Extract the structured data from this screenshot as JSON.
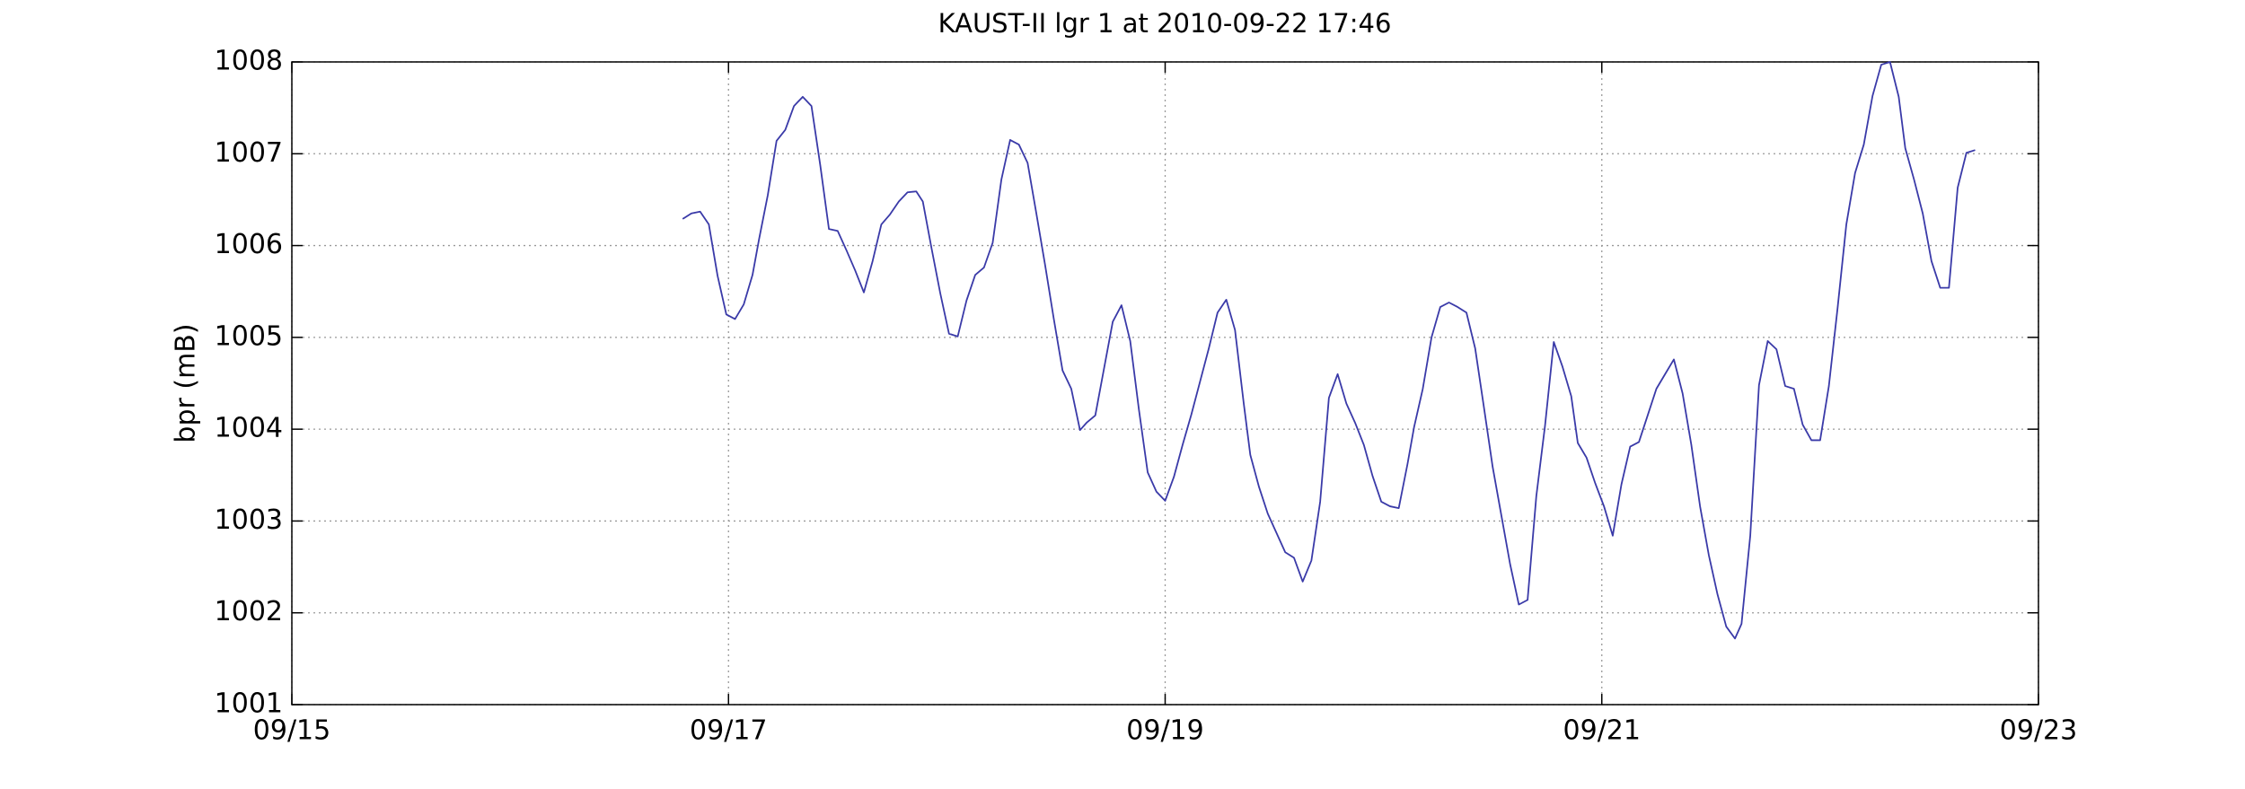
{
  "chart_data": {
    "type": "line",
    "title": "KAUST-II lgr 1 at 2010-09-22 17:46",
    "y_label": "bpr (mB)",
    "color": "#3a3aa8",
    "grid": true,
    "xlim": [
      15,
      23
    ],
    "xticks": [
      {
        "value": 15,
        "label": "09/15"
      },
      {
        "value": 17,
        "label": "09/17"
      },
      {
        "value": 19,
        "label": "09/19"
      },
      {
        "value": 21,
        "label": "09/21"
      },
      {
        "value": 23,
        "label": "09/23"
      }
    ],
    "ylim": [
      1001,
      1008
    ],
    "yticks": [
      1001,
      1002,
      1003,
      1004,
      1005,
      1006,
      1007,
      1008
    ],
    "x": [
      16.79,
      16.83,
      16.87,
      16.91,
      16.95,
      16.99,
      17.03,
      17.07,
      17.11,
      17.14,
      17.18,
      17.22,
      17.26,
      17.3,
      17.34,
      17.38,
      17.42,
      17.46,
      17.5,
      17.54,
      17.58,
      17.62,
      17.66,
      17.7,
      17.74,
      17.78,
      17.82,
      17.86,
      17.89,
      17.93,
      17.97,
      18.01,
      18.05,
      18.09,
      18.13,
      18.17,
      18.21,
      18.25,
      18.29,
      18.33,
      18.37,
      18.41,
      18.45,
      18.49,
      18.53,
      18.57,
      18.61,
      18.64,
      18.68,
      18.72,
      18.76,
      18.8,
      18.84,
      18.88,
      18.92,
      18.96,
      19.0,
      19.04,
      19.08,
      19.12,
      19.16,
      19.2,
      19.24,
      19.28,
      19.32,
      19.36,
      19.39,
      19.43,
      19.47,
      19.51,
      19.55,
      19.59,
      19.63,
      19.67,
      19.71,
      19.75,
      19.79,
      19.83,
      19.87,
      19.91,
      19.95,
      19.99,
      20.03,
      20.07,
      20.11,
      20.14,
      20.18,
      20.22,
      20.26,
      20.3,
      20.34,
      20.38,
      20.42,
      20.46,
      20.5,
      20.54,
      20.58,
      20.62,
      20.66,
      20.7,
      20.74,
      20.78,
      20.82,
      20.86,
      20.89,
      20.93,
      20.97,
      21.01,
      21.05,
      21.09,
      21.13,
      21.17,
      21.21,
      21.25,
      21.29,
      21.33,
      21.37,
      21.41,
      21.45,
      21.49,
      21.53,
      21.57,
      21.61,
      21.64,
      21.68,
      21.72,
      21.76,
      21.8,
      21.84,
      21.88,
      21.92,
      21.96,
      22.0,
      22.04,
      22.08,
      22.12,
      22.16,
      22.2,
      22.24,
      22.28,
      22.32,
      22.36,
      22.39,
      22.43,
      22.47,
      22.51,
      22.55,
      22.59,
      22.63,
      22.67,
      22.71
    ],
    "values": [
      1006.29,
      1006.35,
      1006.37,
      1006.23,
      1005.67,
      1005.25,
      1005.2,
      1005.36,
      1005.68,
      1006.07,
      1006.55,
      1007.14,
      1007.26,
      1007.52,
      1007.62,
      1007.52,
      1006.88,
      1006.18,
      1006.16,
      1005.95,
      1005.73,
      1005.49,
      1005.83,
      1006.23,
      1006.34,
      1006.48,
      1006.58,
      1006.59,
      1006.48,
      1005.97,
      1005.48,
      1005.04,
      1005.01,
      1005.4,
      1005.68,
      1005.76,
      1006.03,
      1006.72,
      1007.15,
      1007.1,
      1006.9,
      1006.35,
      1005.79,
      1005.2,
      1004.64,
      1004.44,
      1003.99,
      1004.07,
      1004.15,
      1004.66,
      1005.17,
      1005.35,
      1004.96,
      1004.21,
      1003.53,
      1003.32,
      1003.22,
      1003.48,
      1003.83,
      1004.16,
      1004.52,
      1004.88,
      1005.27,
      1005.41,
      1005.08,
      1004.28,
      1003.72,
      1003.37,
      1003.08,
      1002.87,
      1002.66,
      1002.6,
      1002.34,
      1002.57,
      1003.21,
      1004.34,
      1004.6,
      1004.28,
      1004.07,
      1003.83,
      1003.49,
      1003.21,
      1003.16,
      1003.14,
      1003.62,
      1004.02,
      1004.44,
      1005.0,
      1005.33,
      1005.38,
      1005.33,
      1005.27,
      1004.88,
      1004.24,
      1003.59,
      1003.06,
      1002.53,
      1002.09,
      1002.14,
      1003.27,
      1004.04,
      1004.95,
      1004.68,
      1004.36,
      1003.85,
      1003.69,
      1003.41,
      1003.16,
      1002.84,
      1003.4,
      1003.81,
      1003.86,
      1004.15,
      1004.44,
      1004.6,
      1004.76,
      1004.39,
      1003.83,
      1003.16,
      1002.63,
      1002.2,
      1001.85,
      1001.72,
      1001.88,
      1002.84,
      1004.48,
      1004.96,
      1004.87,
      1004.47,
      1004.44,
      1004.05,
      1003.88,
      1003.88,
      1004.47,
      1005.32,
      1006.23,
      1006.79,
      1007.1,
      1007.63,
      1007.97,
      1008.0,
      1007.62,
      1007.06,
      1006.72,
      1006.35,
      1005.83,
      1005.54,
      1005.54,
      1006.63,
      1007.01,
      1007.04
    ]
  }
}
